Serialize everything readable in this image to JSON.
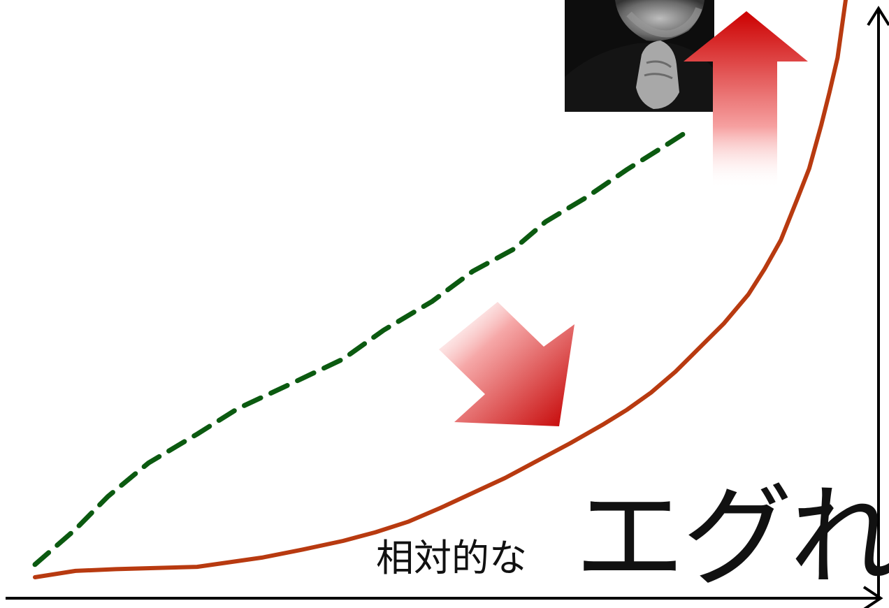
{
  "chart_data": {
    "type": "line",
    "title": "",
    "xlabel": "",
    "ylabel": "",
    "grid": false,
    "legend": "none",
    "annotation_prefix": "相対的な",
    "annotation_main": "エグれ",
    "series": [
      {
        "style": "dashed",
        "color": "#0b5a10",
        "points": [
          [
            0.0,
            0.022
          ],
          [
            0.05,
            0.083
          ],
          [
            0.09,
            0.14
          ],
          [
            0.14,
            0.198
          ],
          [
            0.2,
            0.248
          ],
          [
            0.25,
            0.292
          ],
          [
            0.32,
            0.338
          ],
          [
            0.38,
            0.378
          ],
          [
            0.43,
            0.428
          ],
          [
            0.49,
            0.478
          ],
          [
            0.54,
            0.53
          ],
          [
            0.59,
            0.568
          ],
          [
            0.63,
            0.616
          ],
          [
            0.68,
            0.658
          ],
          [
            0.73,
            0.706
          ],
          [
            0.78,
            0.75
          ],
          [
            0.8,
            0.768
          ]
        ]
      },
      {
        "style": "solid",
        "color": "#b83a10",
        "points": [
          [
            0.0,
            0.0
          ],
          [
            0.05,
            0.011
          ],
          [
            0.1,
            0.014
          ],
          [
            0.15,
            0.016
          ],
          [
            0.2,
            0.018
          ],
          [
            0.24,
            0.026
          ],
          [
            0.28,
            0.034
          ],
          [
            0.33,
            0.048
          ],
          [
            0.38,
            0.063
          ],
          [
            0.42,
            0.078
          ],
          [
            0.46,
            0.096
          ],
          [
            0.5,
            0.12
          ],
          [
            0.54,
            0.146
          ],
          [
            0.58,
            0.172
          ],
          [
            0.62,
            0.202
          ],
          [
            0.66,
            0.232
          ],
          [
            0.7,
            0.264
          ],
          [
            0.73,
            0.29
          ],
          [
            0.76,
            0.32
          ],
          [
            0.79,
            0.356
          ],
          [
            0.82,
            0.398
          ],
          [
            0.85,
            0.44
          ],
          [
            0.88,
            0.49
          ],
          [
            0.9,
            0.534
          ],
          [
            0.92,
            0.584
          ],
          [
            0.94,
            0.654
          ],
          [
            0.955,
            0.708
          ],
          [
            0.97,
            0.784
          ],
          [
            0.98,
            0.84
          ],
          [
            0.99,
            0.9
          ],
          [
            1.0,
            1.0
          ]
        ]
      }
    ],
    "arrows": [
      {
        "direction": "up",
        "color": "#cc0000"
      },
      {
        "direction": "down-right",
        "color": "#cc0000"
      }
    ],
    "photo": {
      "icon": "bearded-man-portrait"
    }
  }
}
